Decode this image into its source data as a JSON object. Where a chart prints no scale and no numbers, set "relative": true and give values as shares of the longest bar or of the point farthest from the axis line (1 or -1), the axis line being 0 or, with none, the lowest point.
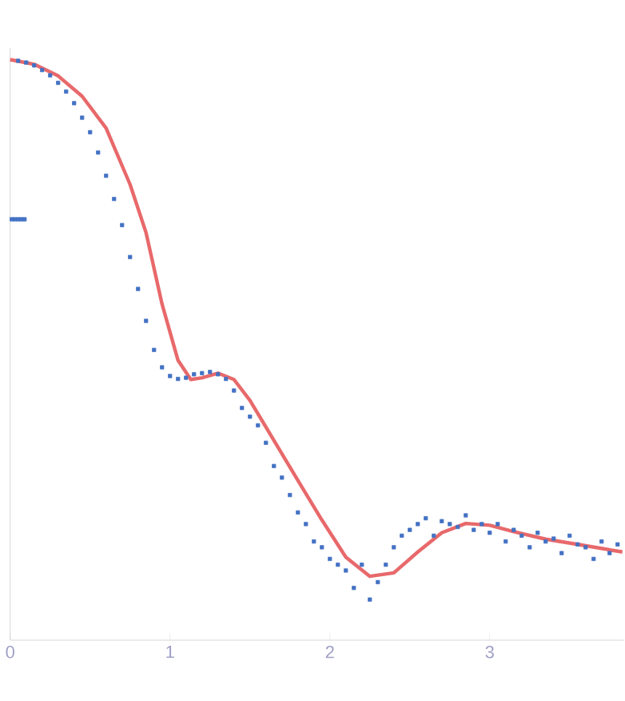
{
  "chart_data": {
    "type": "scatter",
    "relative": true,
    "xlim": [
      0,
      3.84
    ],
    "xticks": [
      0,
      1,
      2,
      3
    ],
    "series": [
      {
        "marker": "square",
        "color": "#4472c4",
        "x": [
          0.01,
          0.03,
          0.05,
          0.07,
          0.09,
          0.05,
          0.1,
          0.15,
          0.2,
          0.25,
          0.3,
          0.35,
          0.4,
          0.45,
          0.5,
          0.55,
          0.6,
          0.65,
          0.7,
          0.75,
          0.8,
          0.85,
          0.9,
          0.95,
          1.0,
          1.05,
          1.1,
          1.15,
          1.2,
          1.25,
          1.3,
          1.35,
          1.4,
          1.45,
          1.5,
          1.55,
          1.6,
          1.65,
          1.7,
          1.75,
          1.8,
          1.85,
          1.9,
          1.95,
          2.0,
          2.05,
          2.1,
          2.15,
          2.2,
          2.25,
          2.3,
          2.35,
          2.4,
          2.45,
          2.5,
          2.55,
          2.6,
          2.65,
          2.7,
          2.75,
          2.8,
          2.85,
          2.9,
          2.95,
          3.0,
          3.05,
          3.1,
          3.15,
          3.2,
          3.25,
          3.3,
          3.35,
          3.4,
          3.45,
          3.5,
          3.55,
          3.6,
          3.65,
          3.7,
          3.75,
          3.8
        ],
        "values": [
          0.725,
          0.725,
          0.725,
          0.725,
          0.725,
          0.998,
          0.995,
          0.99,
          0.982,
          0.973,
          0.96,
          0.945,
          0.925,
          0.9,
          0.875,
          0.84,
          0.8,
          0.76,
          0.715,
          0.66,
          0.605,
          0.55,
          0.5,
          0.47,
          0.455,
          0.45,
          0.452,
          0.458,
          0.46,
          0.462,
          0.458,
          0.45,
          0.43,
          0.4,
          0.385,
          0.37,
          0.34,
          0.3,
          0.28,
          0.25,
          0.22,
          0.2,
          0.17,
          0.16,
          0.14,
          0.13,
          0.12,
          0.09,
          0.13,
          0.07,
          0.1,
          0.13,
          0.16,
          0.18,
          0.19,
          0.2,
          0.21,
          0.18,
          0.205,
          0.2,
          0.195,
          0.215,
          0.19,
          0.2,
          0.185,
          0.2,
          0.17,
          0.19,
          0.18,
          0.16,
          0.185,
          0.17,
          0.175,
          0.15,
          0.18,
          0.165,
          0.16,
          0.14,
          0.17,
          0.15,
          0.165
        ]
      },
      {
        "type": "line",
        "marker": "none",
        "color": "#e8696b",
        "x": [
          0,
          0.15,
          0.3,
          0.45,
          0.6,
          0.75,
          0.85,
          0.95,
          1.05,
          1.13,
          1.2,
          1.3,
          1.4,
          1.5,
          1.65,
          1.8,
          1.95,
          2.1,
          2.25,
          2.4,
          2.55,
          2.7,
          2.85,
          3.0,
          3.15,
          3.35,
          3.55,
          3.83
        ],
        "values": [
          1.0,
          0.992,
          0.972,
          0.937,
          0.882,
          0.785,
          0.702,
          0.579,
          0.482,
          0.449,
          0.452,
          0.46,
          0.449,
          0.413,
          0.344,
          0.275,
          0.207,
          0.143,
          0.11,
          0.116,
          0.152,
          0.185,
          0.201,
          0.198,
          0.187,
          0.174,
          0.165,
          0.152
        ]
      }
    ]
  }
}
